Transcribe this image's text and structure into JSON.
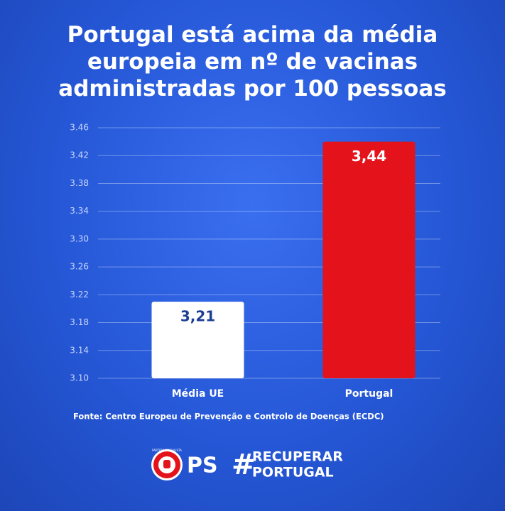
{
  "chart_data": {
    "type": "bar",
    "title": "Portugal está acima da média europeia em nº de vacinas administradas por 100 pessoas",
    "categories": [
      "Média UE",
      "Portugal"
    ],
    "values": [
      3.21,
      3.44
    ],
    "value_labels": [
      "3,21",
      "3,44"
    ],
    "colors": [
      "#ffffff",
      "#e3121b"
    ],
    "label_colors": [
      "#1c3f94",
      "#ffffff"
    ],
    "ylim": [
      3.1,
      3.46
    ],
    "yticks": [
      {
        "value": 3.1,
        "label": "3.10"
      },
      3.14,
      3.18,
      3.22,
      3.26,
      {
        "value": 3.3,
        "label": "3.30"
      },
      3.34,
      3.38,
      3.42,
      3.46
    ],
    "grid": true,
    "source": "Fonte: Centro Europeu de Prevenção e Controlo de Doenças (ECDC)"
  },
  "footer": {
    "emblem": "PARTIDO SOCIALISTA",
    "party": "PS",
    "hashtag": "#",
    "slogan_lines": [
      "RECUPERAR",
      "PORTUGAL"
    ]
  }
}
